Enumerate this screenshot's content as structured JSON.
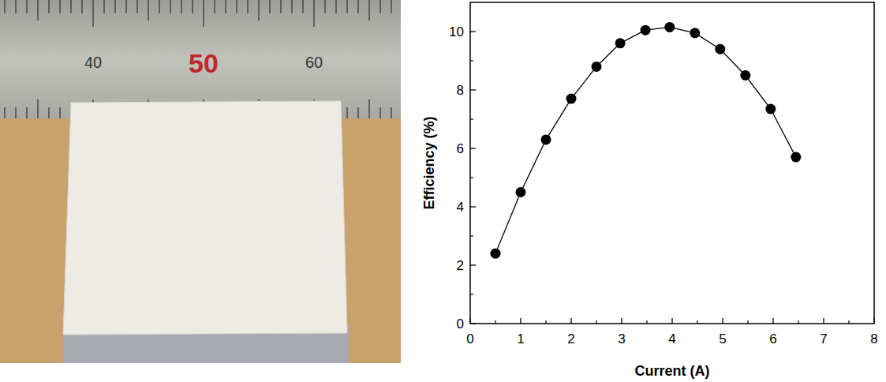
{
  "chart_data": {
    "type": "line",
    "x_label": "Current (A)",
    "y_label": "Efficiency (%)",
    "x": [
      0.5,
      1.0,
      1.5,
      2.0,
      2.5,
      2.97,
      3.47,
      3.95,
      4.45,
      4.95,
      5.45,
      5.95,
      6.45
    ],
    "series": [
      {
        "name": "Efficiency",
        "color": "#000000",
        "marker": "circle",
        "line_style": "solid",
        "values": [
          2.4,
          4.5,
          6.3,
          7.7,
          8.8,
          9.6,
          10.05,
          10.15,
          9.95,
          9.4,
          8.5,
          7.35,
          5.7
        ]
      }
    ],
    "xlim": [
      0,
      8
    ],
    "xticks": [
      0,
      1,
      2,
      3,
      4,
      5,
      6,
      7,
      8
    ],
    "ylim": [
      0,
      11
    ],
    "yticks": [
      0,
      2,
      4,
      6,
      8,
      10
    ],
    "grid": false
  },
  "photo": {
    "ruler_labels": [
      40,
      50,
      60
    ]
  }
}
